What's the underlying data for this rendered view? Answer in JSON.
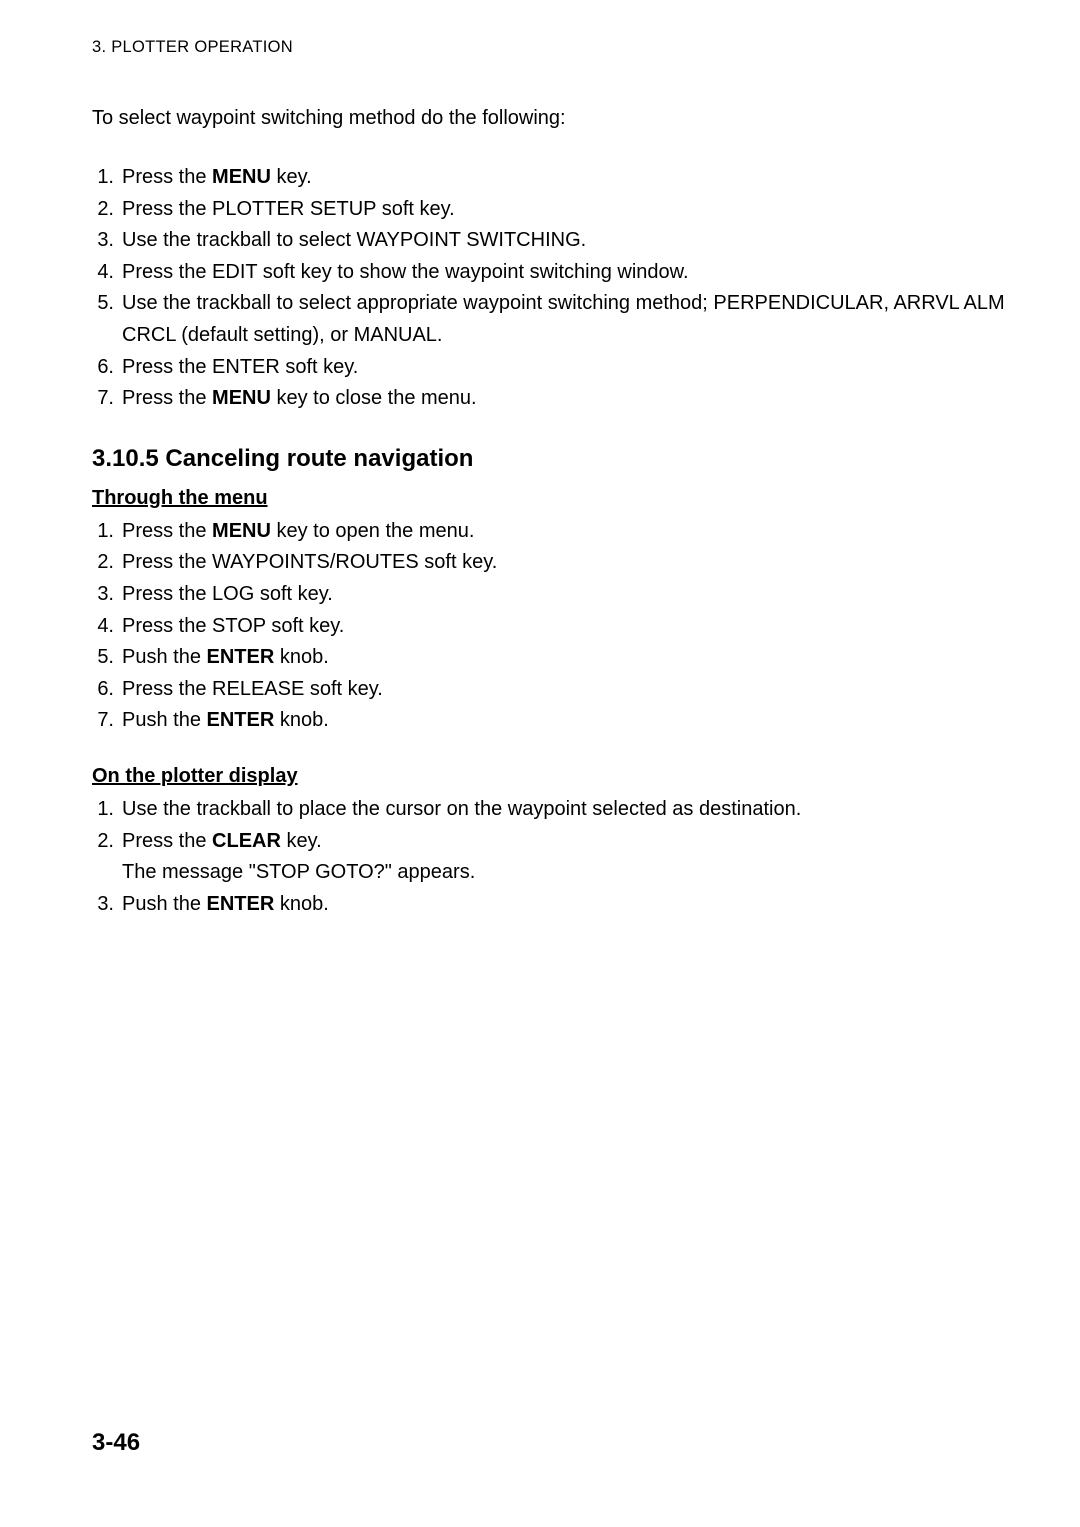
{
  "header": {
    "text": "3. PLOTTER OPERATION"
  },
  "intro": {
    "text": "To select waypoint switching method do the following:"
  },
  "list1": {
    "items": [
      {
        "num": "1.",
        "pre": "Press the ",
        "bold": "MENU",
        "post": " key."
      },
      {
        "num": "2.",
        "pre": "Press the PLOTTER SETUP soft key.",
        "bold": "",
        "post": ""
      },
      {
        "num": "3.",
        "pre": "Use the trackball to select WAYPOINT SWITCHING.",
        "bold": "",
        "post": ""
      },
      {
        "num": "4.",
        "pre": "Press the EDIT soft key to show the waypoint switching window.",
        "bold": "",
        "post": ""
      },
      {
        "num": "5.",
        "pre": "Use the trackball to select appropriate waypoint switching method; PERPENDICULAR, ARRVL ALM CRCL (default setting), or MANUAL.",
        "bold": "",
        "post": ""
      },
      {
        "num": "6.",
        "pre": "Press the ENTER soft key.",
        "bold": "",
        "post": ""
      },
      {
        "num": "7.",
        "pre": "Press the ",
        "bold": "MENU",
        "post": " key to close the menu."
      }
    ]
  },
  "section": {
    "title": "3.10.5  Canceling route navigation"
  },
  "sub1": {
    "title": "Through the menu"
  },
  "list2": {
    "items": [
      {
        "num": "1.",
        "pre": "Press the ",
        "bold": "MENU",
        "post": " key to open the menu."
      },
      {
        "num": "2.",
        "pre": "Press the WAYPOINTS/ROUTES soft key.",
        "bold": "",
        "post": ""
      },
      {
        "num": "3.",
        "pre": "Press the LOG soft key.",
        "bold": "",
        "post": ""
      },
      {
        "num": "4.",
        "pre": "Press the STOP soft key.",
        "bold": "",
        "post": ""
      },
      {
        "num": "5.",
        "pre": "Push the ",
        "bold": "ENTER",
        "post": " knob."
      },
      {
        "num": "6.",
        "pre": "Press the RELEASE soft key.",
        "bold": "",
        "post": ""
      },
      {
        "num": "7.",
        "pre": "Push the ",
        "bold": "ENTER",
        "post": " knob."
      }
    ]
  },
  "sub2": {
    "title": "On the plotter display"
  },
  "list3": {
    "items": [
      {
        "num": "1.",
        "pre": "Use the trackball to place the cursor on the waypoint selected as destination.",
        "bold": "",
        "post": "",
        "cont": ""
      },
      {
        "num": "2.",
        "pre": "Press the ",
        "bold": "CLEAR",
        "post": " key.",
        "cont": "The message \"STOP GOTO?\" appears."
      },
      {
        "num": "3.",
        "pre": "Push the ",
        "bold": "ENTER",
        "post": " knob.",
        "cont": ""
      }
    ]
  },
  "pagenum": {
    "text": "3-46"
  }
}
